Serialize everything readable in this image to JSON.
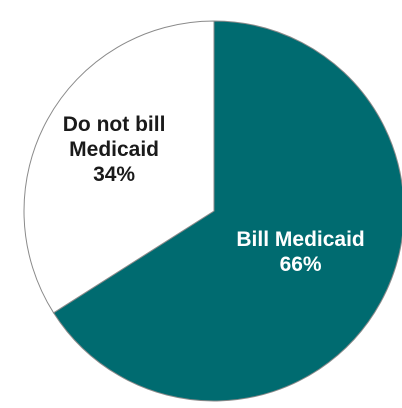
{
  "chart_data": {
    "type": "pie",
    "slices": [
      {
        "label_lines": [
          "Bill Medicaid"
        ],
        "value_label": "66%",
        "value": 66,
        "color": "#006b70",
        "text_color": "#ffffff"
      },
      {
        "label_lines": [
          "Do not bill",
          "Medicaid"
        ],
        "value_label": "34%",
        "value": 34,
        "color": "#ffffff",
        "text_color": "#1a1a1a"
      }
    ],
    "start_angle_deg": 0,
    "direction": "clockwise",
    "outline_color": "#8a8a8a"
  }
}
